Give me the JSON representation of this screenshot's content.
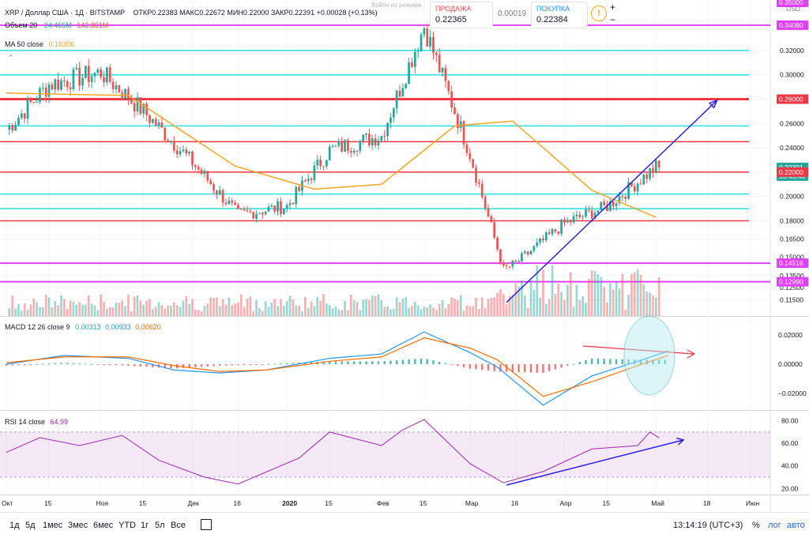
{
  "header": {
    "symbol": "XRP / Доллар США · 1Д · BITSTAMP",
    "ohlc": "ОТКР0.22383 МАКС0.22672 МИН0.22000 ЗАКР0.22391 +0.00028 (+0.13%)",
    "watermark": "Войти из режима"
  },
  "trade_widget": {
    "sell_label": "ПРОДАЖА",
    "sell_price": "0.22365",
    "spread": "0.00019",
    "buy_label": "ПОКУПКА",
    "buy_price": "0.22384",
    "plus": "+",
    "minus": "−"
  },
  "legends": {
    "volume": {
      "label": "Объем 20",
      "v1": "24.465M",
      "v2": "142.861M"
    },
    "ma": {
      "label": "MA 50 close",
      "value": "0.18306"
    },
    "macd": {
      "label": "MACD 12 26 close 9",
      "v1": "0.00313",
      "v2": "0.00933",
      "v3": "0.00620"
    },
    "rsi": {
      "label": "RSI 14 close",
      "value": "64.99"
    }
  },
  "price_axis": {
    "currency": "USD",
    "ticks": [
      "0.32000",
      "0.30000",
      "0.28000",
      "0.26000",
      "0.24000",
      "0.22000",
      "0.20000",
      "0.18000",
      "0.16500",
      "0.15000",
      "0.13500",
      "0.12500",
      "0.11500"
    ],
    "badges": [
      {
        "text": "0.35000",
        "color": "#e040fb"
      },
      {
        "text": "0.34080",
        "color": "#e040fb"
      },
      {
        "text": "0.28000",
        "color": "#f23645"
      },
      {
        "text": "0.22391",
        "color": "#26a69a"
      },
      {
        "text": "13:45:40",
        "color": "#26a69a"
      },
      {
        "text": "0.22000",
        "color": "#f23645"
      },
      {
        "text": "0.14516",
        "color": "#e040fb"
      },
      {
        "text": "0.12990",
        "color": "#e040fb"
      }
    ]
  },
  "macd_axis": {
    "ticks": [
      "0.02000",
      "0.00000",
      "−0.02000"
    ]
  },
  "rsi_axis": {
    "ticks": [
      "80.00",
      "60.00",
      "40.00",
      "20.00"
    ]
  },
  "time_axis": {
    "labels": [
      "Окт",
      "15",
      "Ноя",
      "15",
      "Дек",
      "16",
      "2020",
      "15",
      "Фев",
      "15",
      "Мар",
      "16",
      "Апр",
      "15",
      "Май",
      "18",
      "Июн"
    ]
  },
  "bottom_bar": {
    "ranges": [
      "1д",
      "5д",
      "1мес",
      "3мес",
      "6мес",
      "YTD",
      "1г",
      "5л",
      "Все"
    ],
    "time": "13:14:19 (UTC+3)",
    "percent": "%",
    "log": "лог",
    "auto": "авто"
  },
  "colors": {
    "up": "#26a69a",
    "down": "#ef5350",
    "ma": "#f5a623",
    "macd": "#2196f3",
    "signal": "#ff6d00",
    "rsi": "#9c27b0",
    "resistance": "#f23645",
    "level_cyan": "#26e0e0",
    "level_magenta": "#e040fb",
    "trendline": "#2b22e0"
  },
  "chart_data": [
    {
      "type": "candlestick",
      "title": "XRP / Доллар США · 1Д · BITSTAMP",
      "x_range": [
        "2019-10-01",
        "2020-06-01"
      ],
      "ylim": [
        0.105,
        0.355
      ],
      "key_points": [
        {
          "date": "2019-10-01",
          "close": 0.255
        },
        {
          "date": "2019-10-15",
          "close": 0.292
        },
        {
          "date": "2019-11-01",
          "close": 0.302
        },
        {
          "date": "2019-11-15",
          "close": 0.27
        },
        {
          "date": "2019-12-01",
          "close": 0.228
        },
        {
          "date": "2019-12-16",
          "close": 0.185
        },
        {
          "date": "2020-01-01",
          "close": 0.192
        },
        {
          "date": "2020-01-15",
          "close": 0.238
        },
        {
          "date": "2020-02-01",
          "close": 0.25
        },
        {
          "date": "2020-02-15",
          "close": 0.34
        },
        {
          "date": "2020-03-01",
          "close": 0.235
        },
        {
          "date": "2020-03-12",
          "close": 0.14
        },
        {
          "date": "2020-03-16",
          "close": 0.145
        },
        {
          "date": "2020-04-01",
          "close": 0.178
        },
        {
          "date": "2020-04-15",
          "close": 0.192
        },
        {
          "date": "2020-05-01",
          "close": 0.224
        }
      ],
      "last_close": 0.22391,
      "ma50": [
        {
          "date": "2019-10-01",
          "value": 0.285
        },
        {
          "date": "2019-11-10",
          "value": 0.283
        },
        {
          "date": "2019-12-15",
          "value": 0.225
        },
        {
          "date": "2020-01-10",
          "value": 0.206
        },
        {
          "date": "2020-02-01",
          "value": 0.21
        },
        {
          "date": "2020-02-25",
          "value": 0.258
        },
        {
          "date": "2020-03-15",
          "value": 0.262
        },
        {
          "date": "2020-04-10",
          "value": 0.205
        },
        {
          "date": "2020-05-01",
          "value": 0.183
        }
      ],
      "horizontal_levels": [
        {
          "price": 0.3408,
          "color": "magenta"
        },
        {
          "price": 0.32,
          "color": "cyan"
        },
        {
          "price": 0.3,
          "color": "cyan"
        },
        {
          "price": 0.28,
          "color": "red"
        },
        {
          "price": 0.258,
          "color": "cyan"
        },
        {
          "price": 0.245,
          "color": "red"
        },
        {
          "price": 0.22,
          "color": "red"
        },
        {
          "price": 0.202,
          "color": "cyan"
        },
        {
          "price": 0.19,
          "color": "cyan"
        },
        {
          "price": 0.18,
          "color": "red"
        },
        {
          "price": 0.14516,
          "color": "magenta"
        },
        {
          "price": 0.1299,
          "color": "magenta"
        }
      ],
      "trendline": [
        {
          "date": "2020-03-13",
          "price": 0.113
        },
        {
          "date": "2020-05-21",
          "price": 0.279
        }
      ]
    },
    {
      "type": "line",
      "title": "MACD 12 26 close 9",
      "ylim": [
        -0.027,
        0.027
      ],
      "series": [
        {
          "name": "MACD",
          "points": [
            {
              "date": "2019-10-01",
              "value": 0.0
            },
            {
              "date": "2019-10-20",
              "value": 0.006
            },
            {
              "date": "2019-11-10",
              "value": 0.004
            },
            {
              "date": "2019-11-25",
              "value": -0.004
            },
            {
              "date": "2019-12-10",
              "value": -0.006
            },
            {
              "date": "2019-12-25",
              "value": -0.004
            },
            {
              "date": "2020-01-15",
              "value": 0.004
            },
            {
              "date": "2020-02-01",
              "value": 0.007
            },
            {
              "date": "2020-02-15",
              "value": 0.022
            },
            {
              "date": "2020-03-01",
              "value": 0.008
            },
            {
              "date": "2020-03-10",
              "value": -0.002
            },
            {
              "date": "2020-03-25",
              "value": -0.028
            },
            {
              "date": "2020-04-10",
              "value": -0.008
            },
            {
              "date": "2020-04-25",
              "value": 0.002
            },
            {
              "date": "2020-05-05",
              "value": 0.009
            }
          ]
        },
        {
          "name": "Signal",
          "points": [
            {
              "date": "2019-10-01",
              "value": 0.001
            },
            {
              "date": "2019-10-20",
              "value": 0.005
            },
            {
              "date": "2019-11-10",
              "value": 0.005
            },
            {
              "date": "2019-11-25",
              "value": -0.001
            },
            {
              "date": "2019-12-10",
              "value": -0.005
            },
            {
              "date": "2019-12-25",
              "value": -0.004
            },
            {
              "date": "2020-01-15",
              "value": 0.002
            },
            {
              "date": "2020-02-01",
              "value": 0.005
            },
            {
              "date": "2020-02-15",
              "value": 0.018
            },
            {
              "date": "2020-03-01",
              "value": 0.011
            },
            {
              "date": "2020-03-10",
              "value": 0.003
            },
            {
              "date": "2020-03-25",
              "value": -0.022
            },
            {
              "date": "2020-04-10",
              "value": -0.012
            },
            {
              "date": "2020-04-25",
              "value": -0.001
            },
            {
              "date": "2020-05-05",
              "value": 0.006
            }
          ]
        }
      ]
    },
    {
      "type": "line",
      "title": "RSI 14 close",
      "ylim": [
        16,
        86
      ],
      "bands": [
        30,
        70
      ],
      "series": [
        {
          "name": "RSI",
          "points": [
            {
              "date": "2019-10-01",
              "value": 52
            },
            {
              "date": "2019-10-12",
              "value": 65
            },
            {
              "date": "2019-10-25",
              "value": 58
            },
            {
              "date": "2019-11-08",
              "value": 67
            },
            {
              "date": "2019-11-20",
              "value": 45
            },
            {
              "date": "2019-12-05",
              "value": 30
            },
            {
              "date": "2019-12-16",
              "value": 24
            },
            {
              "date": "2020-01-05",
              "value": 47
            },
            {
              "date": "2020-01-15",
              "value": 70
            },
            {
              "date": "2020-02-01",
              "value": 58
            },
            {
              "date": "2020-02-08",
              "value": 72
            },
            {
              "date": "2020-02-15",
              "value": 81
            },
            {
              "date": "2020-03-01",
              "value": 42
            },
            {
              "date": "2020-03-12",
              "value": 25
            },
            {
              "date": "2020-03-25",
              "value": 35
            },
            {
              "date": "2020-04-10",
              "value": 55
            },
            {
              "date": "2020-04-25",
              "value": 58
            },
            {
              "date": "2020-04-29",
              "value": 70
            },
            {
              "date": "2020-05-02",
              "value": 64.99
            }
          ]
        }
      ]
    }
  ]
}
